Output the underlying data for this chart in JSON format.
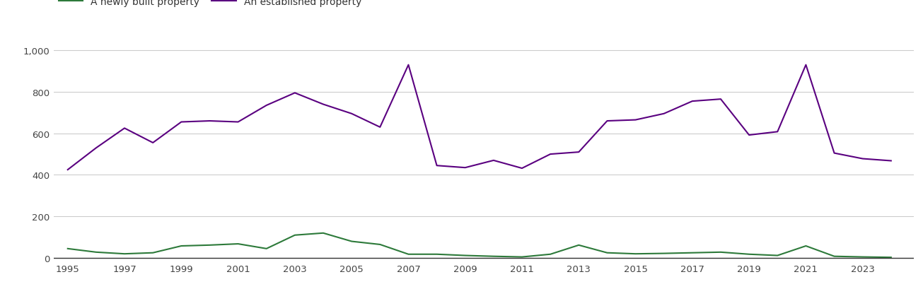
{
  "years": [
    1995,
    1996,
    1997,
    1998,
    1999,
    2000,
    2001,
    2002,
    2003,
    2004,
    2005,
    2006,
    2007,
    2008,
    2009,
    2010,
    2011,
    2012,
    2013,
    2014,
    2015,
    2016,
    2017,
    2018,
    2019,
    2020,
    2021,
    2022,
    2023,
    2024
  ],
  "new_homes": [
    45,
    28,
    20,
    25,
    58,
    62,
    68,
    45,
    110,
    120,
    80,
    65,
    18,
    18,
    12,
    8,
    5,
    18,
    62,
    25,
    20,
    22,
    25,
    28,
    18,
    12,
    58,
    8,
    5,
    3
  ],
  "established_homes": [
    425,
    530,
    625,
    555,
    655,
    660,
    655,
    735,
    795,
    740,
    695,
    630,
    930,
    445,
    435,
    470,
    432,
    500,
    510,
    660,
    665,
    695,
    755,
    765,
    592,
    608,
    930,
    505,
    478,
    468
  ],
  "new_color": "#2d7a3a",
  "established_color": "#5a0080",
  "legend_new": "A newly built property",
  "legend_established": "An established property",
  "yticks": [
    0,
    200,
    400,
    600,
    800,
    1000
  ],
  "xticks": [
    1995,
    1997,
    1999,
    2001,
    2003,
    2005,
    2007,
    2009,
    2011,
    2013,
    2015,
    2017,
    2019,
    2021,
    2023
  ],
  "ylim": [
    -10,
    1050
  ],
  "xlim": [
    1994.5,
    2024.8
  ],
  "background_color": "#ffffff",
  "grid_color": "#cccccc",
  "line_width": 1.5
}
